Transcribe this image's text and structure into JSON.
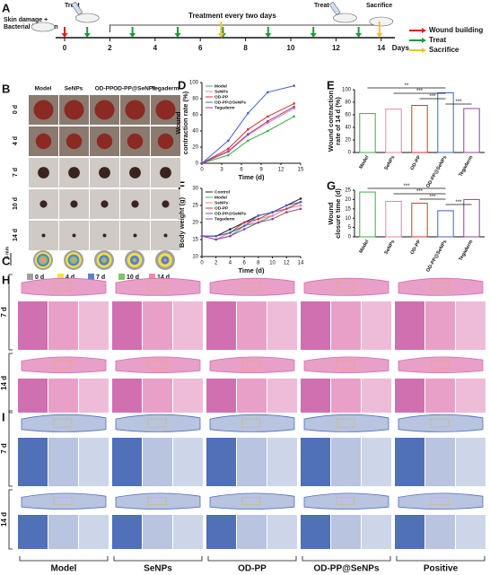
{
  "figure": {
    "panel_labels": {
      "A": "A",
      "B": "B",
      "C": "C",
      "D": "D",
      "E": "E",
      "F": "F",
      "G": "G",
      "H": "H",
      "I": "I"
    },
    "timeline": {
      "infection": [
        "Skin damage +",
        "Bacterial infection"
      ],
      "treat_top": "Treat",
      "treat_top2": "Treat",
      "treatment_note": "Treatment every two days",
      "sacrifice_top": "Sacrifice",
      "ticks": [
        0,
        2,
        4,
        6,
        8,
        10,
        12,
        14
      ],
      "unit": "Days",
      "infection_day": 0,
      "treat_days": [
        1,
        3,
        5,
        7,
        9,
        11,
        13
      ],
      "sacrifice_days": [
        7,
        14
      ],
      "legend": [
        {
          "name": "Wound building",
          "color": "#e02020"
        },
        {
          "name": "Treat",
          "color": "#1a9a3a"
        },
        {
          "name": "Sacrifice",
          "color": "#f0c030"
        }
      ]
    },
    "photos": {
      "columns": [
        "Model",
        "SeNPs",
        "OD-PP",
        "OD-PP@SeNPs",
        "Tegaderm"
      ],
      "rows": [
        "0 d",
        "4 d",
        "7 d",
        "10 d",
        "14 d"
      ]
    },
    "traces": {
      "scale": "5 mm",
      "legend": [
        {
          "name": "0 d",
          "color": "#a0a0a0"
        },
        {
          "name": "4 d",
          "color": "#f2e040"
        },
        {
          "name": "7 d",
          "color": "#5a7fd0"
        },
        {
          "name": "10 d",
          "color": "#7cc860"
        },
        {
          "name": "14 d",
          "color": "#f08aa0"
        }
      ]
    },
    "histology": {
      "rows": [
        "7 d",
        "14 d"
      ],
      "groups": [
        "Model",
        "SeNPs",
        "OD-PP",
        "OD-PP@SeNPs",
        "Positive"
      ]
    }
  },
  "chart_data": [
    {
      "type": "line",
      "ylabel": [
        "Wound",
        "contraction rate (%)"
      ],
      "xlabel": "Time (d)",
      "x": [
        0,
        4,
        7,
        10,
        14
      ],
      "xlim": [
        0,
        15
      ],
      "xticks": [
        0,
        3,
        6,
        9,
        12,
        15
      ],
      "ylim": [
        0,
        100
      ],
      "yticks": [
        0,
        20,
        40,
        60,
        80,
        100
      ],
      "series": [
        {
          "name": "Model",
          "color": "#3cb043",
          "values": [
            0,
            10,
            28,
            40,
            58
          ]
        },
        {
          "name": "SeNPs",
          "color": "#f080a0",
          "values": [
            0,
            14,
            35,
            50,
            68
          ]
        },
        {
          "name": "OD-PP",
          "color": "#e03030",
          "values": [
            0,
            18,
            42,
            58,
            74
          ]
        },
        {
          "name": "OD-PP@SeNPs",
          "color": "#4060d0",
          "values": [
            0,
            28,
            62,
            88,
            96
          ]
        },
        {
          "name": "Tegaderm",
          "color": "#9040a0",
          "values": [
            0,
            15,
            36,
            52,
            70
          ]
        }
      ]
    },
    {
      "type": "bar",
      "ylabel": [
        "Wound contraction",
        "rate of 14 d (%)"
      ],
      "categories": [
        "Model",
        "SeNPs",
        "OD-PP",
        "OD-PP@SeNPs",
        "Tegaderm"
      ],
      "values": [
        62,
        69,
        75,
        95,
        70
      ],
      "colors": [
        "#3cb043",
        "#f080a0",
        "#e03030",
        "#4060d0",
        "#9040a0"
      ],
      "ylim": [
        0,
        100
      ],
      "yticks": [
        0,
        20,
        40,
        60,
        80,
        100
      ],
      "annotations": [
        {
          "text": "**",
          "between": [
            0,
            3
          ]
        },
        {
          "text": "***",
          "between": [
            1,
            3
          ]
        },
        {
          "text": "***",
          "between": [
            2,
            3
          ]
        },
        {
          "text": "***",
          "between": [
            3,
            4
          ]
        }
      ]
    },
    {
      "type": "line",
      "ylabel": [
        "Body weight (g)"
      ],
      "xlabel": "Time (d)",
      "x": [
        0,
        2,
        4,
        6,
        8,
        10,
        12,
        14
      ],
      "xlim": [
        0,
        14
      ],
      "xticks": [
        0,
        2,
        4,
        6,
        8,
        10,
        12,
        14
      ],
      "ylim": [
        10,
        30
      ],
      "yticks": [
        10,
        15,
        20,
        25,
        30
      ],
      "series": [
        {
          "name": "Control",
          "color": "#222222",
          "values": [
            16,
            16,
            18,
            20,
            22,
            23,
            25,
            27
          ]
        },
        {
          "name": "Model",
          "color": "#3cb043",
          "values": [
            16,
            15,
            16,
            19,
            20,
            22,
            24,
            26
          ]
        },
        {
          "name": "SeNPs",
          "color": "#f080a0",
          "values": [
            16,
            15,
            17,
            19,
            21,
            22,
            24,
            25
          ]
        },
        {
          "name": "OD-PP",
          "color": "#e03030",
          "values": [
            16,
            16,
            17,
            20,
            21,
            23,
            24,
            26
          ]
        },
        {
          "name": "OD-PP@SeNPs",
          "color": "#4060d0",
          "values": [
            16,
            16,
            17,
            19,
            22,
            23,
            25,
            26
          ]
        },
        {
          "name": "Tegaderm",
          "color": "#9040a0",
          "values": [
            16,
            15,
            16,
            18,
            20,
            21,
            23,
            24
          ]
        }
      ]
    },
    {
      "type": "bar",
      "ylabel": [
        "Wound",
        "closure time (d)"
      ],
      "categories": [
        "Model",
        "SeNPs",
        "OD-PP",
        "OD-PP@SeNPs",
        "Tegaderm"
      ],
      "values": [
        24,
        19,
        18,
        14,
        20
      ],
      "colors": [
        "#3cb043",
        "#f080a0",
        "#e03030",
        "#4060d0",
        "#9040a0"
      ],
      "ylim": [
        0,
        25
      ],
      "yticks": [
        0,
        5,
        10,
        15,
        20,
        25
      ],
      "annotations": [
        {
          "text": "***",
          "between": [
            0,
            3
          ]
        },
        {
          "text": "***",
          "between": [
            1,
            3
          ]
        },
        {
          "text": "***",
          "between": [
            2,
            3
          ]
        },
        {
          "text": "***",
          "between": [
            3,
            4
          ]
        }
      ]
    }
  ]
}
